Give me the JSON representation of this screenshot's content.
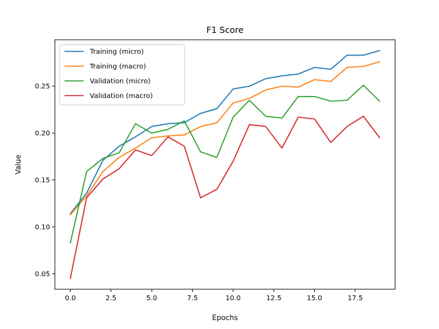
{
  "chart_data": {
    "type": "line",
    "title": "F1 Score",
    "xlabel": "Epochs",
    "ylabel": "Value",
    "xlim": [
      -0.95,
      19.95
    ],
    "ylim": [
      0.0335,
      0.2995
    ],
    "xticks": [
      0,
      2.5,
      5,
      7.5,
      10,
      12.5,
      15,
      17.5
    ],
    "xtick_labels": [
      "0.0",
      "2.5",
      "5.0",
      "7.5",
      "10.0",
      "12.5",
      "15.0",
      "17.5"
    ],
    "yticks": [
      0.05,
      0.1,
      0.15,
      0.2,
      0.25
    ],
    "ytick_labels": [
      "0.05",
      "0.10",
      "0.15",
      "0.20",
      "0.25"
    ],
    "grid": false,
    "legend_position": "top-left",
    "x": [
      0,
      1,
      2,
      3,
      4,
      5,
      6,
      7,
      8,
      9,
      10,
      11,
      12,
      13,
      14,
      15,
      16,
      17,
      18,
      19
    ],
    "series": [
      {
        "name": "Training (micro)",
        "color": "#1f77b4",
        "values": [
          0.114,
          0.136,
          0.171,
          0.186,
          0.196,
          0.207,
          0.21,
          0.211,
          0.221,
          0.226,
          0.247,
          0.25,
          0.258,
          0.261,
          0.263,
          0.27,
          0.268,
          0.283,
          0.283,
          0.288
        ]
      },
      {
        "name": "Training (macro)",
        "color": "#ff7f0e",
        "values": [
          0.113,
          0.133,
          0.159,
          0.174,
          0.184,
          0.195,
          0.197,
          0.198,
          0.207,
          0.211,
          0.232,
          0.237,
          0.246,
          0.25,
          0.249,
          0.257,
          0.255,
          0.27,
          0.271,
          0.276
        ]
      },
      {
        "name": "Validation (micro)",
        "color": "#2ca02c",
        "values": [
          0.083,
          0.159,
          0.173,
          0.179,
          0.21,
          0.2,
          0.204,
          0.213,
          0.18,
          0.174,
          0.217,
          0.235,
          0.218,
          0.216,
          0.239,
          0.239,
          0.234,
          0.235,
          0.251,
          0.234
        ]
      },
      {
        "name": "Validation (macro)",
        "color": "#d62728",
        "values": [
          0.045,
          0.131,
          0.151,
          0.162,
          0.182,
          0.176,
          0.196,
          0.186,
          0.131,
          0.14,
          0.17,
          0.209,
          0.207,
          0.184,
          0.217,
          0.215,
          0.19,
          0.207,
          0.218,
          0.195
        ]
      }
    ]
  }
}
